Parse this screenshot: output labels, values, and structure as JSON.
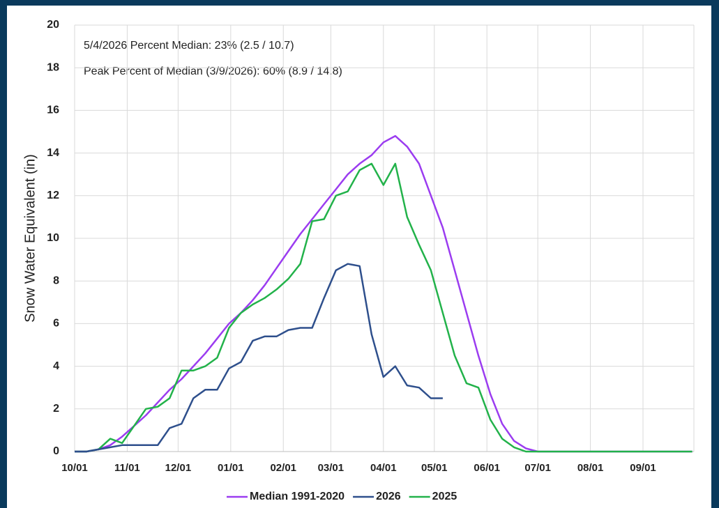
{
  "chart_data": {
    "type": "line",
    "annotations": [
      "5/4/2026 Percent Median: 23% (2.5 / 10.7)",
      "Peak Percent of Median (3/9/2026): 60% (8.9 / 14.8)"
    ],
    "y_label": "Snow Water Equivalent (in)",
    "x": [
      0,
      7,
      14,
      21,
      28,
      35,
      42,
      49,
      56,
      63,
      70,
      77,
      84,
      91,
      98,
      105,
      112,
      119,
      126,
      133,
      140,
      147,
      154,
      161,
      168,
      175,
      182,
      189,
      196,
      203,
      210,
      217,
      224,
      231,
      238,
      245,
      252,
      259,
      266,
      273,
      280,
      287,
      294,
      301,
      308,
      315,
      322,
      329,
      336,
      343,
      350,
      357,
      364
    ],
    "xlim": [
      0,
      365
    ],
    "xticks": [
      {
        "value": 0,
        "label": "10/01"
      },
      {
        "value": 31,
        "label": "11/01"
      },
      {
        "value": 61,
        "label": "12/01"
      },
      {
        "value": 92,
        "label": "01/01"
      },
      {
        "value": 123,
        "label": "02/01"
      },
      {
        "value": 151,
        "label": "03/01"
      },
      {
        "value": 182,
        "label": "04/01"
      },
      {
        "value": 212,
        "label": "05/01"
      },
      {
        "value": 243,
        "label": "06/01"
      },
      {
        "value": 273,
        "label": "07/01"
      },
      {
        "value": 304,
        "label": "08/01"
      },
      {
        "value": 335,
        "label": "09/01"
      }
    ],
    "ylim": [
      0,
      20
    ],
    "yticks": [
      0,
      2,
      4,
      6,
      8,
      10,
      12,
      14,
      16,
      18,
      20
    ],
    "grid": true,
    "legend": "bottom",
    "series": [
      {
        "name": "Median 1991-2020",
        "color": "#9b3cf0",
        "values": [
          0,
          0,
          0.1,
          0.3,
          0.7,
          1.2,
          1.7,
          2.3,
          2.9,
          3.4,
          4.0,
          4.6,
          5.3,
          6.0,
          6.5,
          7.1,
          7.8,
          8.6,
          9.4,
          10.2,
          10.9,
          11.6,
          12.3,
          13.0,
          13.5,
          13.9,
          14.5,
          14.8,
          14.3,
          13.5,
          12.0,
          10.5,
          8.5,
          6.5,
          4.5,
          2.7,
          1.3,
          0.5,
          0.15,
          0,
          0,
          0,
          0,
          0,
          0,
          0,
          0,
          0,
          0,
          0,
          0,
          0,
          0
        ]
      },
      {
        "name": "2026",
        "color": "#2e4f8c",
        "values": [
          0,
          0,
          0.1,
          0.2,
          0.3,
          0.3,
          0.3,
          0.3,
          1.1,
          1.3,
          2.5,
          2.9,
          2.9,
          3.9,
          4.2,
          5.2,
          5.4,
          5.4,
          5.7,
          5.8,
          5.8,
          7.2,
          8.5,
          8.8,
          8.7,
          5.5,
          3.5,
          4.0,
          3.1,
          3.0,
          2.5,
          2.5,
          null,
          null,
          null,
          null,
          null,
          null,
          null,
          null,
          null,
          null,
          null,
          null,
          null,
          null,
          null,
          null,
          null,
          null,
          null,
          null,
          null
        ]
      },
      {
        "name": "2025",
        "color": "#22b24a",
        "values": [
          0,
          0,
          0.1,
          0.6,
          0.4,
          1.2,
          2.0,
          2.1,
          2.5,
          3.8,
          3.8,
          4.0,
          4.4,
          5.8,
          6.5,
          6.9,
          7.2,
          7.6,
          8.1,
          8.8,
          10.8,
          10.9,
          12.0,
          12.2,
          13.2,
          13.5,
          12.5,
          13.5,
          11.0,
          9.7,
          8.5,
          6.5,
          4.5,
          3.2,
          3.0,
          1.5,
          0.6,
          0.2,
          0,
          0,
          0,
          0,
          0,
          0,
          0,
          0,
          0,
          0,
          0,
          0,
          0,
          0,
          0
        ]
      }
    ]
  }
}
